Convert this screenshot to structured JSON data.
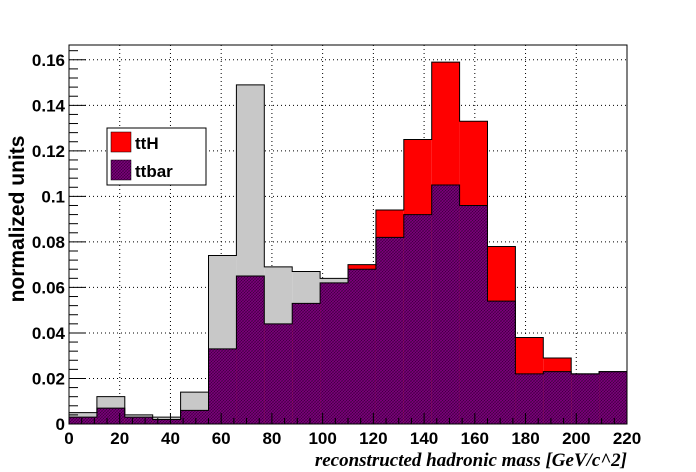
{
  "chart_data": {
    "type": "bar",
    "title": "",
    "xlabel": "reconstructed hadronic mass [GeV/c^2]",
    "ylabel": "normalized units",
    "xlim": [
      0,
      220
    ],
    "ylim": [
      0,
      0.1665
    ],
    "x_ticks": [
      0,
      20,
      40,
      60,
      80,
      100,
      120,
      140,
      160,
      180,
      200,
      220
    ],
    "y_ticks": [
      0,
      0.02,
      0.04,
      0.06,
      0.08,
      0.1,
      0.12,
      0.14,
      0.16
    ],
    "y_tick_labels": [
      "0",
      "0.02",
      "0.04",
      "0.06",
      "0.08",
      "0.1",
      "0.12",
      "0.14",
      "0.16"
    ],
    "grid": true,
    "legend_position": "upper-left",
    "bin_edges": [
      0,
      11,
      22,
      33,
      44,
      55,
      66,
      77,
      88,
      99,
      110,
      121,
      132,
      143,
      154,
      165,
      176,
      187,
      198,
      209,
      220
    ],
    "series": [
      {
        "name": "ttH",
        "color": "#ff0000",
        "fill": "solid",
        "values": [
          0.003,
          0.007,
          0.003,
          0.002,
          0.006,
          0.033,
          0.065,
          0.044,
          0.053,
          0.062,
          0.07,
          0.094,
          0.125,
          0.159,
          0.133,
          0.078,
          0.038,
          0.029,
          0.022,
          0.023
        ]
      },
      {
        "name": "ttbar",
        "color": "#800080",
        "fill": "hatched",
        "values": [
          0.005,
          0.012,
          0.004,
          0.003,
          0.014,
          0.074,
          0.149,
          0.069,
          0.067,
          0.064,
          0.068,
          0.082,
          0.092,
          0.105,
          0.096,
          0.054,
          0.022,
          0.023,
          0.022,
          0.023
        ]
      }
    ]
  }
}
